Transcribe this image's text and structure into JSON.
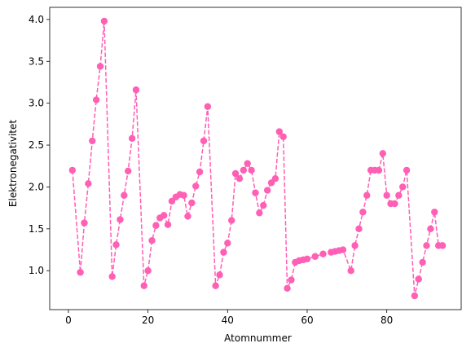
{
  "chart_data": {
    "type": "line",
    "xlabel": "Atomnummer",
    "ylabel": "Elektronegativitet",
    "xlim": [
      -4.7,
      98.7
    ],
    "ylim": [
      0.535,
      4.145
    ],
    "xticks": [
      0,
      20,
      40,
      60,
      80
    ],
    "yticks": [
      1.0,
      1.5,
      2.0,
      2.5,
      3.0,
      3.5,
      4.0
    ],
    "xtick_labels": [
      "0",
      "20",
      "40",
      "60",
      "80"
    ],
    "ytick_labels": [
      "1.0",
      "1.5",
      "2.0",
      "2.5",
      "3.0",
      "3.5",
      "4.0"
    ],
    "grid": false,
    "series": [
      {
        "color": "#ff5fb4",
        "line_style": "dashed",
        "marker": "circle",
        "x": [
          1,
          3,
          4,
          5,
          6,
          7,
          8,
          9,
          11,
          12,
          13,
          14,
          15,
          16,
          17,
          19,
          20,
          21,
          22,
          23,
          24,
          25,
          26,
          27,
          28,
          29,
          30,
          31,
          32,
          33,
          34,
          35,
          37,
          38,
          39,
          40,
          41,
          42,
          43,
          44,
          45,
          46,
          47,
          48,
          49,
          50,
          51,
          52,
          53,
          54,
          55,
          56,
          57,
          58,
          59,
          60,
          62,
          64,
          66,
          67,
          68,
          69,
          71,
          72,
          73,
          74,
          75,
          76,
          77,
          78,
          79,
          80,
          81,
          82,
          83,
          84,
          85,
          87,
          88,
          89,
          90,
          91,
          92,
          93,
          94
        ],
        "y": [
          2.2,
          0.98,
          1.57,
          2.04,
          2.55,
          3.04,
          3.44,
          3.98,
          0.93,
          1.31,
          1.61,
          1.9,
          2.19,
          2.58,
          3.16,
          0.82,
          1.0,
          1.36,
          1.54,
          1.63,
          1.66,
          1.55,
          1.83,
          1.88,
          1.91,
          1.9,
          1.65,
          1.81,
          2.01,
          2.18,
          2.55,
          2.96,
          0.82,
          0.95,
          1.22,
          1.33,
          1.6,
          2.16,
          2.1,
          2.2,
          2.28,
          2.2,
          1.93,
          1.69,
          1.78,
          1.96,
          2.05,
          2.1,
          2.66,
          2.6,
          0.79,
          0.89,
          1.1,
          1.12,
          1.13,
          1.14,
          1.17,
          1.2,
          1.22,
          1.23,
          1.24,
          1.25,
          1.0,
          1.3,
          1.5,
          1.7,
          1.9,
          2.2,
          2.2,
          2.2,
          2.4,
          1.9,
          1.8,
          1.8,
          1.9,
          2.0,
          2.2,
          0.7,
          0.9,
          1.1,
          1.3,
          1.5,
          1.7,
          1.3,
          1.3
        ]
      }
    ]
  }
}
